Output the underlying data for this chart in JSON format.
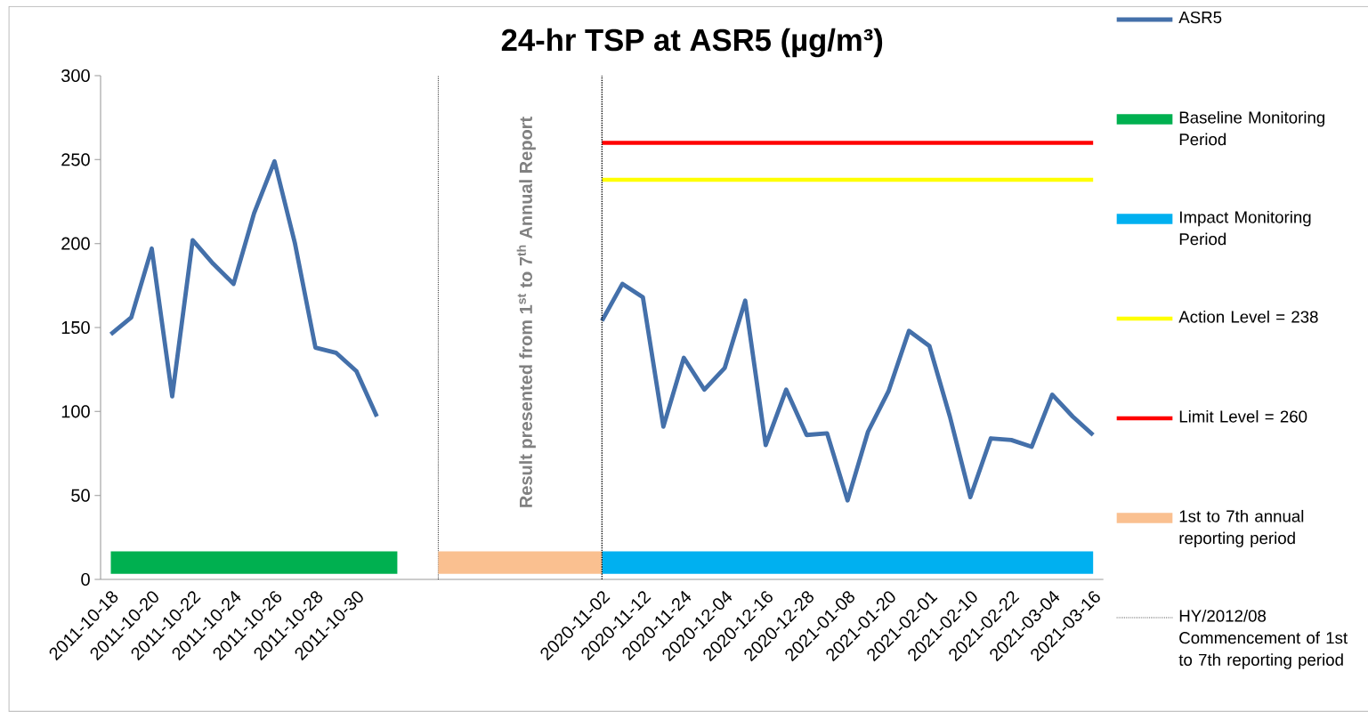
{
  "chart_data": {
    "type": "line",
    "title": "24-hr TSP at ASR5 (µg/m³)",
    "categories": [
      "2011-10-18",
      null,
      "2011-10-20",
      null,
      "2011-10-22",
      null,
      "2011-10-24",
      null,
      "2011-10-26",
      null,
      "2011-10-28",
      null,
      "2011-10-30",
      null,
      null,
      null,
      null,
      null,
      null,
      null,
      null,
      null,
      null,
      null,
      "2020-11-02",
      null,
      "2020-11-12",
      null,
      "2020-11-24",
      null,
      "2020-12-04",
      null,
      "2020-12-16",
      null,
      "2020-12-28",
      null,
      "2021-01-08",
      null,
      "2021-01-20",
      null,
      "2021-02-01",
      null,
      "2021-02-10",
      null,
      "2021-02-22",
      null,
      "2021-03-04",
      null,
      "2021-03-16"
    ],
    "series": [
      {
        "name": "ASR5",
        "color": "#4470aa",
        "values": [
          146,
          156,
          197,
          109,
          202,
          188,
          176,
          218,
          249,
          200,
          138,
          135,
          124,
          97,
          null,
          null,
          null,
          null,
          null,
          null,
          null,
          null,
          null,
          null,
          154,
          176,
          168,
          91,
          132,
          113,
          126,
          166,
          80,
          113,
          86,
          87,
          47,
          88,
          112,
          148,
          139,
          97,
          49,
          84,
          83,
          79,
          110,
          97,
          86
        ]
      },
      {
        "name": "Baseline Monitoring Period",
        "color": "#00b050",
        "values": [
          10,
          10,
          10,
          10,
          10,
          10,
          10,
          10,
          10,
          10,
          10,
          10,
          10,
          10,
          10,
          null,
          null,
          null,
          null,
          null,
          null,
          null,
          null,
          null,
          null,
          null,
          null,
          null,
          null,
          null,
          null,
          null,
          null,
          null,
          null,
          null,
          null,
          null,
          null,
          null,
          null,
          null,
          null,
          null,
          null,
          null,
          null,
          null,
          null
        ]
      },
      {
        "name": "Impact Monitoring Period",
        "color": "#00b0f0",
        "values": [
          null,
          null,
          null,
          null,
          null,
          null,
          null,
          null,
          null,
          null,
          null,
          null,
          null,
          null,
          null,
          null,
          null,
          null,
          null,
          null,
          null,
          null,
          null,
          null,
          10,
          10,
          10,
          10,
          10,
          10,
          10,
          10,
          10,
          10,
          10,
          10,
          10,
          10,
          10,
          10,
          10,
          10,
          10,
          10,
          10,
          10,
          10,
          10,
          10
        ]
      },
      {
        "name": "Action Level = 238",
        "color": "#ffff00",
        "values": [
          null,
          null,
          null,
          null,
          null,
          null,
          null,
          null,
          null,
          null,
          null,
          null,
          null,
          null,
          null,
          null,
          null,
          null,
          null,
          null,
          null,
          null,
          null,
          null,
          238,
          238,
          238,
          238,
          238,
          238,
          238,
          238,
          238,
          238,
          238,
          238,
          238,
          238,
          238,
          238,
          238,
          238,
          238,
          238,
          238,
          238,
          238,
          238,
          238
        ]
      },
      {
        "name": "Limit Level = 260",
        "color": "#ff0000",
        "values": [
          null,
          null,
          null,
          null,
          null,
          null,
          null,
          null,
          null,
          null,
          null,
          null,
          null,
          null,
          null,
          null,
          null,
          null,
          null,
          null,
          null,
          null,
          null,
          null,
          260,
          260,
          260,
          260,
          260,
          260,
          260,
          260,
          260,
          260,
          260,
          260,
          260,
          260,
          260,
          260,
          260,
          260,
          260,
          260,
          260,
          260,
          260,
          260,
          260
        ]
      },
      {
        "name": "1st to 7th annual reporting period",
        "color": "#fac090",
        "values": [
          null,
          null,
          null,
          null,
          null,
          null,
          null,
          null,
          null,
          null,
          null,
          null,
          null,
          null,
          null,
          null,
          10,
          10,
          10,
          10,
          10,
          10,
          10,
          10,
          10,
          null,
          null,
          null,
          null,
          null,
          null,
          null,
          null,
          null,
          null,
          null,
          null,
          null,
          null,
          null,
          null,
          null,
          null,
          null,
          null,
          null,
          null,
          null,
          null
        ]
      }
    ],
    "ref_lines": [
      {
        "axis": "x",
        "value": "2020-11-02",
        "label": "HY/2012/08 Commencement of 1st to 7th reporting period",
        "color": "#000000",
        "line_style": "dotted"
      }
    ],
    "annotations": [
      "Result presented from 1$^{st}$ to 7$^{th}$ Annual Report"
    ],
    "ylim": [
      0,
      300
    ],
    "yticks": [
      0,
      50,
      100,
      150,
      200,
      250,
      300
    ],
    "legend": "right"
  }
}
